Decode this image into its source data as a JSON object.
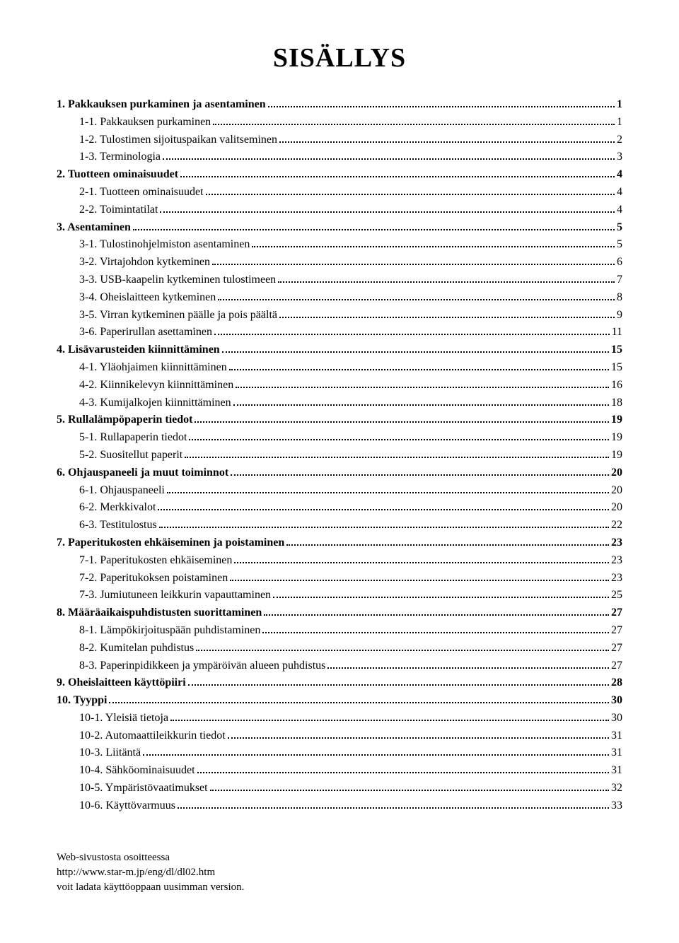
{
  "title": "SISÄLLYS",
  "toc": [
    {
      "level": "section",
      "label": "1. Pakkauksen purkaminen ja asentaminen",
      "page": "1"
    },
    {
      "level": "sub",
      "label": "1-1.  Pakkauksen purkaminen",
      "page": "1"
    },
    {
      "level": "sub",
      "label": "1-2.  Tulostimen sijoituspaikan valitseminen",
      "page": "2"
    },
    {
      "level": "sub",
      "label": "1-3.  Terminologia",
      "page": "3"
    },
    {
      "level": "section",
      "label": "2. Tuotteen ominaisuudet",
      "page": "4"
    },
    {
      "level": "sub",
      "label": "2-1.  Tuotteen ominaisuudet",
      "page": "4"
    },
    {
      "level": "sub",
      "label": "2-2.  Toimintatilat",
      "page": "4"
    },
    {
      "level": "section",
      "label": "3. Asentaminen",
      "page": "5"
    },
    {
      "level": "sub",
      "label": "3-1.  Tulostinohjelmiston asentaminen",
      "page": "5"
    },
    {
      "level": "sub",
      "label": "3-2.  Virtajohdon kytkeminen",
      "page": "6"
    },
    {
      "level": "sub",
      "label": "3-3.  USB-kaapelin kytkeminen tulostimeen",
      "page": "7"
    },
    {
      "level": "sub",
      "label": "3-4.  Oheislaitteen kytkeminen",
      "page": "8"
    },
    {
      "level": "sub",
      "label": "3-5.  Virran kytkeminen päälle ja pois päältä",
      "page": "9"
    },
    {
      "level": "sub",
      "label": "3-6.  Paperirullan asettaminen",
      "page": "11"
    },
    {
      "level": "section",
      "label": "4. Lisävarusteiden kiinnittäminen",
      "page": "15"
    },
    {
      "level": "sub",
      "label": "4-1.  Yläohjaimen kiinnittäminen",
      "page": "15"
    },
    {
      "level": "sub",
      "label": "4-2.  Kiinnikelevyn kiinnittäminen",
      "page": "16"
    },
    {
      "level": "sub",
      "label": "4-3.  Kumijalkojen kiinnittäminen",
      "page": "18"
    },
    {
      "level": "section",
      "label": "5. Rullalämpöpaperin tiedot",
      "page": "19"
    },
    {
      "level": "sub",
      "label": "5-1.  Rullapaperin tiedot",
      "page": "19"
    },
    {
      "level": "sub",
      "label": "5-2.  Suositellut paperit",
      "page": "19"
    },
    {
      "level": "section",
      "label": "6. Ohjauspaneeli ja muut toiminnot",
      "page": "20"
    },
    {
      "level": "sub",
      "label": "6-1.  Ohjauspaneeli",
      "page": "20"
    },
    {
      "level": "sub",
      "label": "6-2.  Merkkivalot",
      "page": "20"
    },
    {
      "level": "sub",
      "label": "6-3.  Testitulostus",
      "page": "22"
    },
    {
      "level": "section",
      "label": "7. Paperitukosten ehkäiseminen ja poistaminen",
      "page": "23"
    },
    {
      "level": "sub",
      "label": "7-1.  Paperitukosten ehkäiseminen",
      "page": "23"
    },
    {
      "level": "sub",
      "label": "7-2.  Paperitukoksen poistaminen",
      "page": "23"
    },
    {
      "level": "sub",
      "label": "7-3.  Jumiutuneen leikkurin vapauttaminen",
      "page": "25"
    },
    {
      "level": "section",
      "label": "8. Määräaikaispuhdistusten suorittaminen",
      "page": "27"
    },
    {
      "level": "sub",
      "label": "8-1.  Lämpökirjoituspään puhdistaminen",
      "page": "27"
    },
    {
      "level": "sub",
      "label": "8-2.  Kumitelan puhdistus",
      "page": "27"
    },
    {
      "level": "sub",
      "label": "8-3.  Paperinpidikkeen ja ympäröivän alueen puhdistus",
      "page": "27"
    },
    {
      "level": "section",
      "label": "9. Oheislaitteen käyttöpiiri",
      "page": "28"
    },
    {
      "level": "section",
      "label": "10. Tyyppi",
      "page": "30"
    },
    {
      "level": "sub",
      "label": "10-1. Yleisiä tietoja",
      "page": "30"
    },
    {
      "level": "sub",
      "label": "10-2. Automaattileikkurin tiedot",
      "page": "31"
    },
    {
      "level": "sub",
      "label": "10-3. Liitäntä",
      "page": "31"
    },
    {
      "level": "sub",
      "label": "10-4. Sähköominaisuudet",
      "page": "31"
    },
    {
      "level": "sub",
      "label": "10-5. Ympäristövaatimukset",
      "page": "32"
    },
    {
      "level": "sub",
      "label": "10-6. Käyttövarmuus",
      "page": "33"
    }
  ],
  "footer": {
    "line1": "Web-sivustosta osoitteessa",
    "line2": "http://www.star-m.jp/eng/dl/dl02.htm",
    "line3": "voit ladata käyttöoppaan uusimman version."
  }
}
